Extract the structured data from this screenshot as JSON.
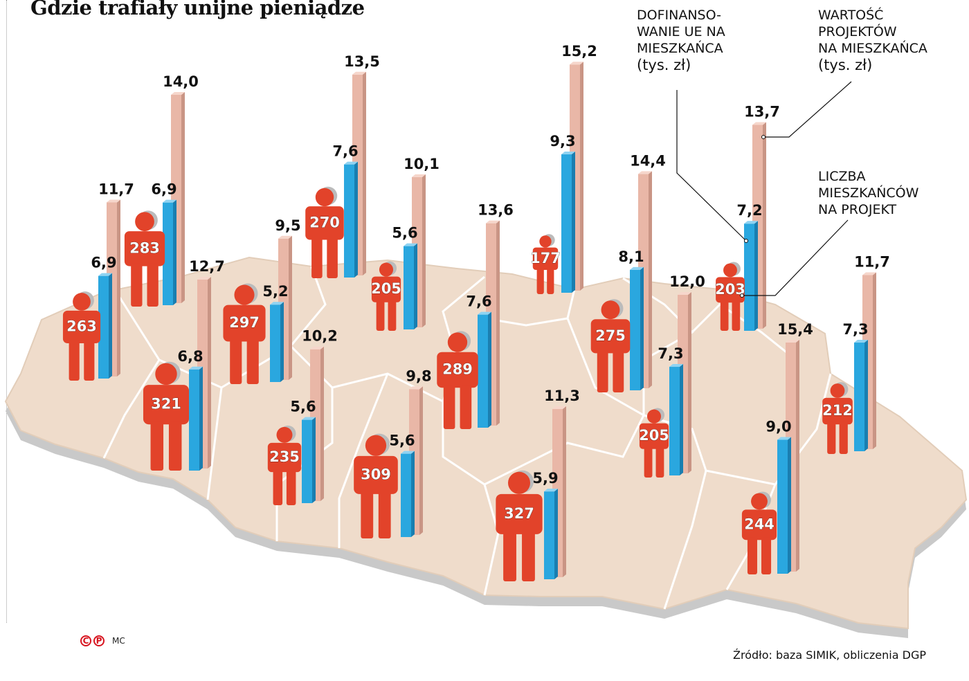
{
  "title": "Gdzie trafiały unijne pieniądze",
  "legend": {
    "eu_funding": "DOFINANSO-\nWANIE UE NA\nMIESZKAŃCA",
    "eu_funding_unit": "(tys. zł)",
    "project_value": "WARTOŚĆ\nPROJEKTÓW\nNA MIESZKAŃCA",
    "project_value_unit": "(tys. zł)",
    "residents_per_project": "LICZBA\nMIESZKAŃCÓW\nNA PROJEKT"
  },
  "source": "Źródło: baza SIMIK, obliczenia DGP",
  "credit": {
    "c": "C",
    "p": "P",
    "author": "MC"
  },
  "colors": {
    "eu_bar": "#2aa7df",
    "value_bar": "#e9b7a7",
    "figure": "#e2432a",
    "map": "#efdccb"
  },
  "chart_data": {
    "type": "bar",
    "title": "Gdzie trafiały unijne pieniądze",
    "series": [
      {
        "name": "Liczba mieszkańców na projekt",
        "values": [
          263,
          283,
          321,
          297,
          270,
          205,
          235,
          309,
          289,
          177,
          327,
          275,
          205,
          203,
          244,
          212
        ]
      },
      {
        "name": "Dofinansowanie UE na mieszkańca (tys. zł)",
        "values": [
          "6,9",
          "6,9",
          "6,8",
          "5,2",
          "7,6",
          "5,6",
          "5,6",
          "5,6",
          "7,6",
          "9,3",
          "5,9",
          "8,1",
          "7,3",
          "7,2",
          "9,0",
          "7,3"
        ]
      },
      {
        "name": "Wartość projektów na mieszkańca (tys. zł)",
        "values": [
          "11,7",
          "14,0",
          "12,7",
          "9,5",
          "13,5",
          "10,1",
          "10,2",
          "9,8",
          "13,6",
          "15,2",
          "11,3",
          "14,4",
          "12,0",
          "13,7",
          "15,4",
          "11,7"
        ]
      }
    ]
  }
}
